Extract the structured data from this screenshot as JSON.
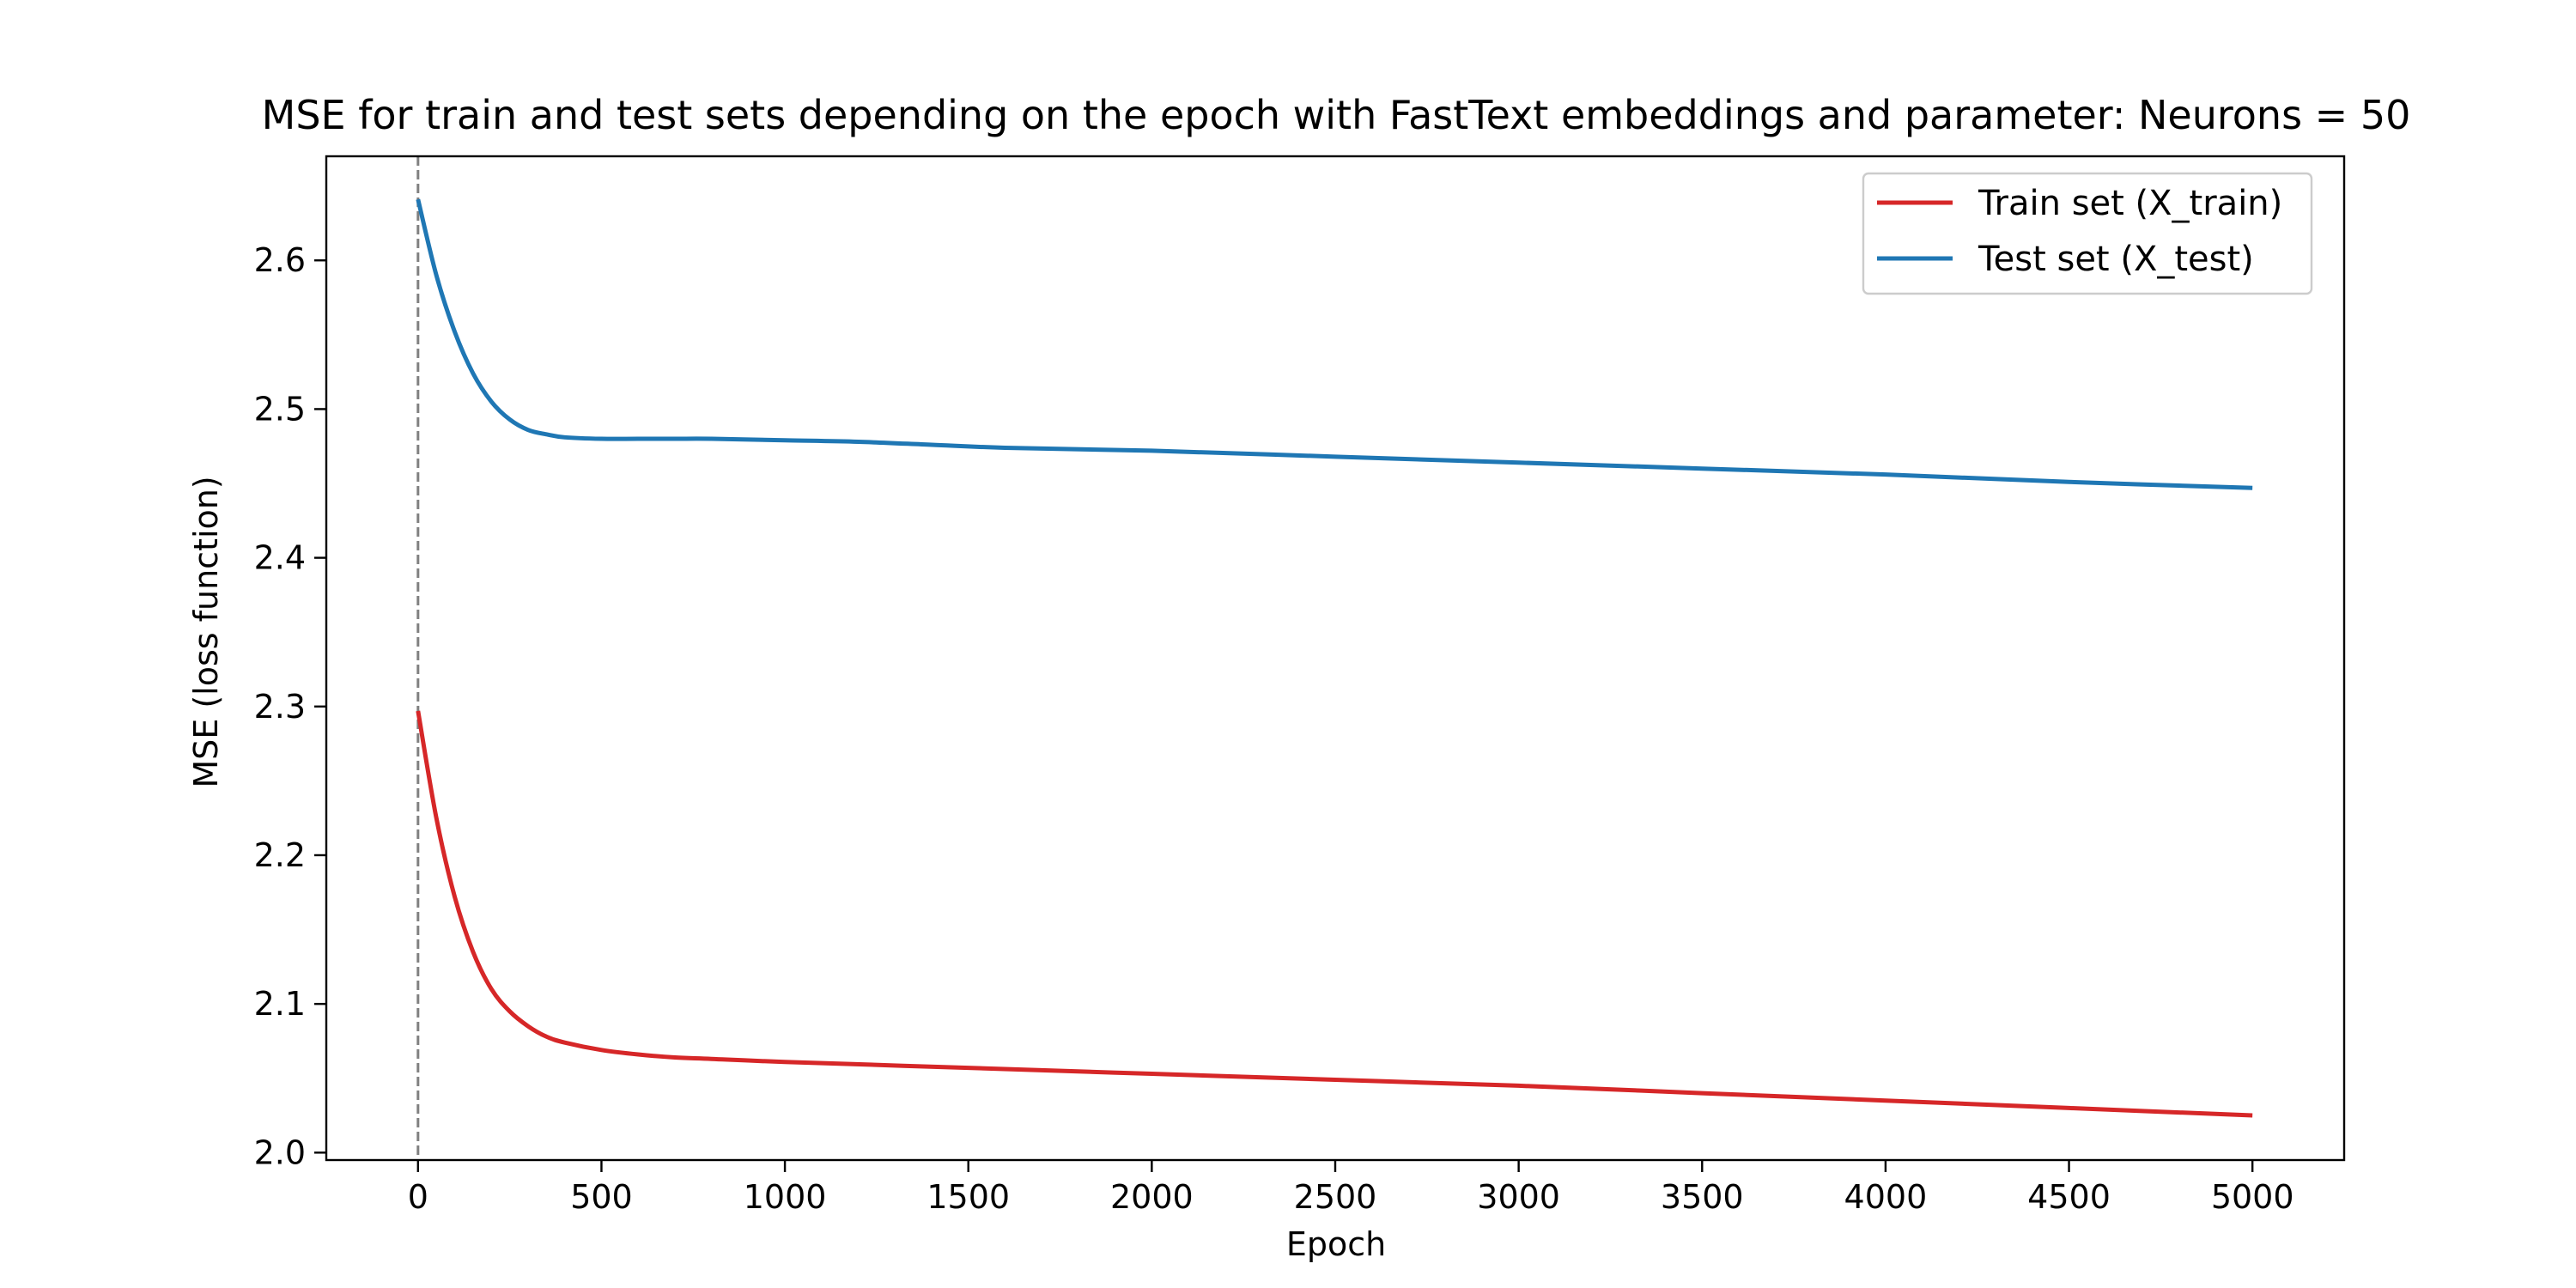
{
  "chart_data": {
    "type": "line",
    "title": "MSE for train and test sets depending on the epoch with FastText embeddings and parameter: Neurons = 50",
    "xlabel": "Epoch",
    "ylabel": "MSE (loss function)",
    "xlim": [
      -250,
      5250
    ],
    "ylim": [
      1.995,
      2.67
    ],
    "xticks": [
      0,
      500,
      1000,
      1500,
      2000,
      2500,
      3000,
      3500,
      4000,
      4500,
      5000
    ],
    "yticks": [
      2.0,
      2.1,
      2.2,
      2.3,
      2.4,
      2.5,
      2.6
    ],
    "xtick_labels": [
      "0",
      "500",
      "1000",
      "1500",
      "2000",
      "2500",
      "3000",
      "3500",
      "4000",
      "4500",
      "5000"
    ],
    "ytick_labels": [
      "2.0",
      "2.1",
      "2.2",
      "2.3",
      "2.4",
      "2.5",
      "2.6"
    ],
    "grid": false,
    "legend_position": "top-right",
    "vline": {
      "x": 0,
      "color": "#808080",
      "style": "dashed"
    },
    "series": [
      {
        "name": "Train set (X_train)",
        "color": "#d62728",
        "x": [
          0,
          50,
          100,
          150,
          200,
          250,
          300,
          350,
          400,
          500,
          600,
          700,
          800,
          1000,
          1500,
          2000,
          2500,
          3000,
          3500,
          4000,
          4500,
          5000
        ],
        "y": [
          2.297,
          2.225,
          2.172,
          2.135,
          2.11,
          2.095,
          2.085,
          2.078,
          2.074,
          2.069,
          2.066,
          2.064,
          2.063,
          2.061,
          2.057,
          2.053,
          2.049,
          2.045,
          2.04,
          2.035,
          2.03,
          2.025
        ]
      },
      {
        "name": "Test set (X_test)",
        "color": "#1f77b4",
        "x": [
          0,
          50,
          100,
          150,
          200,
          250,
          300,
          350,
          400,
          500,
          600,
          700,
          800,
          1000,
          1200,
          1400,
          1600,
          2000,
          2500,
          3000,
          3500,
          4000,
          4500,
          5000
        ],
        "y": [
          2.641,
          2.59,
          2.552,
          2.524,
          2.505,
          2.493,
          2.486,
          2.483,
          2.481,
          2.48,
          2.48,
          2.48,
          2.48,
          2.479,
          2.478,
          2.476,
          2.474,
          2.472,
          2.468,
          2.464,
          2.46,
          2.456,
          2.451,
          2.447
        ]
      }
    ]
  }
}
